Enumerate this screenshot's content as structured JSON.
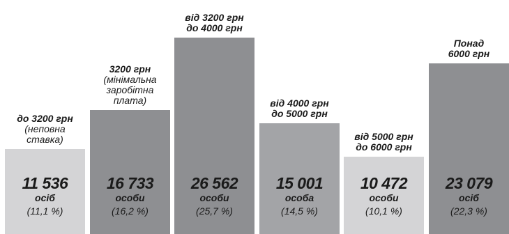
{
  "chart_data": {
    "type": "bar",
    "categories": [
      {
        "lines": [
          {
            "text": "до 3200 грн",
            "bold": true
          },
          {
            "text": "(неповна",
            "bold": false
          },
          {
            "text": "ставка)",
            "bold": false
          }
        ]
      },
      {
        "lines": [
          {
            "text": "3200 грн",
            "bold": true
          },
          {
            "text": "(мінімальна",
            "bold": false
          },
          {
            "text": "заробітна",
            "bold": false
          },
          {
            "text": "плата)",
            "bold": false
          }
        ]
      },
      {
        "lines": [
          {
            "text": "від 3200 грн",
            "bold": true
          },
          {
            "text": "до 4000 грн",
            "bold": true
          }
        ]
      },
      {
        "lines": [
          {
            "text": "від 4000 грн",
            "bold": true
          },
          {
            "text": "до 5000 грн",
            "bold": true
          }
        ]
      },
      {
        "lines": [
          {
            "text": "від 5000 грн",
            "bold": true
          },
          {
            "text": "до 6000 грн",
            "bold": true
          }
        ]
      },
      {
        "lines": [
          {
            "text": "Понад",
            "bold": true
          },
          {
            "text": "6000 грн",
            "bold": true
          }
        ]
      }
    ],
    "values": [
      11536,
      16733,
      26562,
      15001,
      10472,
      23079
    ],
    "value_labels": [
      "11 536",
      "16 733",
      "26 562",
      "15 001",
      "10 472",
      "23 079"
    ],
    "units": [
      "осіб",
      "особи",
      "особи",
      "особа",
      "особи",
      "осіб"
    ],
    "percent_labels": [
      "(11,1 %)",
      "(16,2 %)",
      "(25,7 %)",
      "(14,5 %)",
      "(10,1 %)",
      "(22,3 %)"
    ],
    "percents": [
      11.1,
      16.2,
      25.7,
      14.5,
      10.1,
      22.3
    ],
    "colors": [
      "#d4d4d6",
      "#8e8f92",
      "#8e8f92",
      "#a3a4a7",
      "#d4d4d6",
      "#8e8f92"
    ],
    "ylim": [
      0,
      26562
    ],
    "grid": false,
    "legend": "none"
  }
}
